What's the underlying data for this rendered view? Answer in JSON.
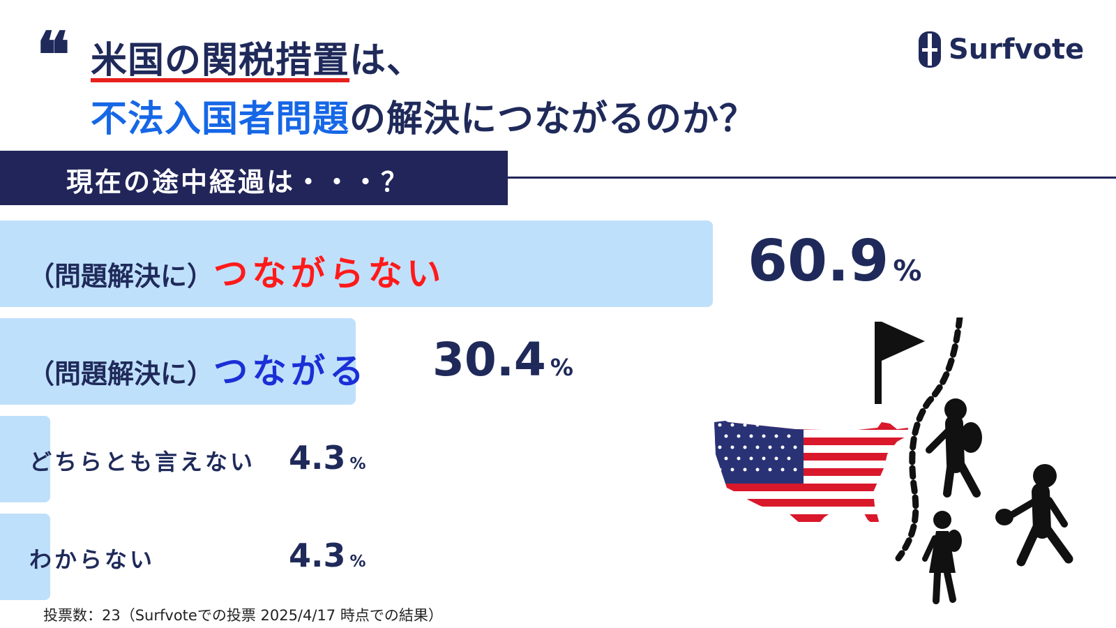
{
  "header": {
    "quote_mark": "❝",
    "title_line1_highlight": "米国の関税措置",
    "title_line1_rest": "は、",
    "title_line2_highlight": "不法入国者問題",
    "title_line2_rest": "の解決につながるのか？"
  },
  "logo": {
    "name": "Surfvote"
  },
  "band": {
    "label": "現在の途中経過は・・・？"
  },
  "footer": {
    "note": "投票数：23（Surfvoteでの投票  2025/4/17 時点での結果）"
  },
  "colors": {
    "navy": "#1f2a5a",
    "bar": "#bfe0fb",
    "red": "#ff1a1a",
    "blue": "#1a2fd6",
    "accent_blue": "#1667e6"
  },
  "chart_data": {
    "type": "bar",
    "orientation": "horizontal",
    "categories": [
      "（問題解決に）つながらない",
      "（問題解決に）つながる",
      "どちらとも言えない",
      "わからない"
    ],
    "values": [
      60.9,
      30.4,
      4.3,
      4.3
    ],
    "unit": "%",
    "items": [
      {
        "prefix": "（問題解決に）",
        "emph": "つながらない",
        "emph_color": "#ff1a1a",
        "value": 60.9,
        "value_text": "60.9",
        "unit": "%"
      },
      {
        "prefix": "（問題解決に）",
        "emph": "つながる",
        "emph_color": "#1a2fd6",
        "value": 30.4,
        "value_text": "30.4",
        "unit": "%"
      },
      {
        "prefix": "どちらとも言えない",
        "emph": "",
        "value": 4.3,
        "value_text": "4.3",
        "unit": "%"
      },
      {
        "prefix": "わからない",
        "emph": "",
        "value": 4.3,
        "value_text": "4.3",
        "unit": "%"
      }
    ]
  },
  "illustration": {
    "icons": [
      "us-map-flag-icon",
      "goal-flag-icon",
      "dashed-border-icon",
      "migrant-figure-icon",
      "migrant-child-icon",
      "migrant-with-bag-icon"
    ]
  }
}
